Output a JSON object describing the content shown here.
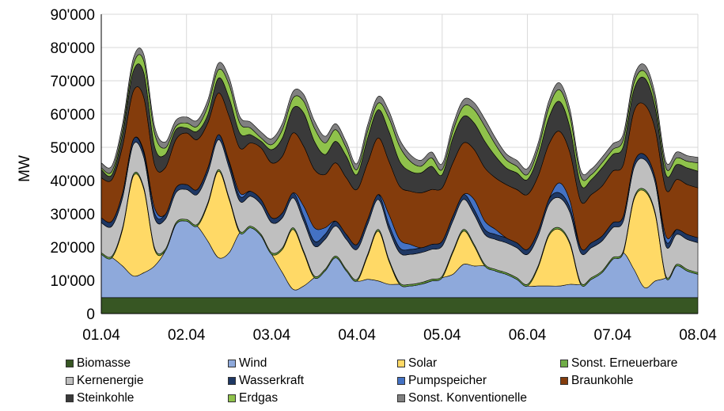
{
  "chart_data": {
    "type": "area",
    "stacked": true,
    "title": "",
    "xlabel": "",
    "ylabel": "MW",
    "ylim": [
      0,
      90000
    ],
    "yticks": [
      "0",
      "10'000",
      "20'000",
      "30'000",
      "40'000",
      "50'000",
      "60'000",
      "70'000",
      "80'000",
      "90'000"
    ],
    "xlim": [
      0,
      7
    ],
    "xticks": [
      "01.04",
      "02.04",
      "03.04",
      "04.04",
      "05.04",
      "06.04",
      "07.04",
      "08.04"
    ],
    "x": [
      0,
      0.125,
      0.25,
      0.375,
      0.5,
      0.625,
      0.75,
      0.875,
      1,
      1.125,
      1.25,
      1.375,
      1.5,
      1.625,
      1.75,
      1.875,
      2,
      2.125,
      2.25,
      2.375,
      2.5,
      2.625,
      2.75,
      2.875,
      3,
      3.125,
      3.25,
      3.375,
      3.5,
      3.625,
      3.75,
      3.875,
      4,
      4.125,
      4.25,
      4.375,
      4.5,
      4.625,
      4.75,
      4.875,
      5,
      5.125,
      5.25,
      5.375,
      5.5,
      5.625,
      5.75,
      5.875,
      6,
      6.125,
      6.25,
      6.375,
      6.5,
      6.625,
      6.75,
      6.875,
      7
    ],
    "grid": true,
    "legend_position": "bottom",
    "series": [
      {
        "name": "Biomasse",
        "color": "#375623",
        "values": [
          4800,
          4800,
          4800,
          4800,
          4800,
          4800,
          4800,
          4800,
          4800,
          4800,
          4800,
          4800,
          4800,
          4800,
          4800,
          4800,
          4800,
          4800,
          4800,
          4800,
          4800,
          4800,
          4800,
          4800,
          4800,
          4800,
          4800,
          4800,
          4800,
          4800,
          4800,
          4800,
          4800,
          4800,
          4800,
          4800,
          4800,
          4800,
          4800,
          4800,
          4800,
          4800,
          4800,
          4800,
          4800,
          4800,
          4800,
          4800,
          4800,
          4800,
          4800,
          4800,
          4800,
          4800,
          4800,
          4800,
          4800
        ]
      },
      {
        "name": "Wind",
        "color": "#8EA9DB",
        "values": [
          13000,
          12000,
          9500,
          6500,
          7500,
          9500,
          14000,
          22000,
          23000,
          21500,
          17000,
          12000,
          13500,
          19500,
          21000,
          18500,
          13000,
          7500,
          2500,
          3500,
          6000,
          8000,
          12000,
          8000,
          5000,
          5500,
          5000,
          4000,
          4000,
          3500,
          4000,
          5000,
          6000,
          7000,
          10000,
          9500,
          9500,
          8000,
          7000,
          5500,
          3500,
          3500,
          3500,
          3500,
          4000,
          4000,
          5500,
          7500,
          11500,
          13500,
          8500,
          3000,
          5000,
          6000,
          9500,
          8000,
          7000
        ]
      },
      {
        "name": "Solar",
        "color": "#FFD966",
        "values": [
          0,
          0,
          11000,
          30000,
          25000,
          5000,
          0,
          0,
          0,
          0,
          11000,
          26000,
          16000,
          0,
          0,
          0,
          0,
          7000,
          18000,
          10000,
          0,
          0,
          0,
          0,
          0,
          7000,
          15000,
          7000,
          0,
          0,
          0,
          0,
          0,
          6500,
          10000,
          6000,
          0,
          0,
          0,
          0,
          0,
          5500,
          15000,
          17000,
          12000,
          0,
          0,
          0,
          0,
          0,
          21000,
          29000,
          20000,
          0,
          0,
          0,
          0
        ]
      },
      {
        "name": "Sonst. Erneuerbare",
        "color": "#70AD47",
        "values": [
          500,
          500,
          500,
          500,
          500,
          500,
          500,
          500,
          500,
          500,
          500,
          500,
          500,
          500,
          500,
          500,
          500,
          500,
          500,
          500,
          500,
          500,
          500,
          500,
          500,
          500,
          500,
          500,
          500,
          500,
          500,
          500,
          500,
          500,
          500,
          500,
          500,
          500,
          500,
          500,
          500,
          500,
          500,
          500,
          500,
          500,
          500,
          500,
          500,
          500,
          500,
          500,
          500,
          500,
          500,
          500,
          500
        ]
      },
      {
        "name": "Kernenergie",
        "color": "#BFBFBF",
        "values": [
          9000,
          9000,
          9000,
          9000,
          9000,
          9000,
          9000,
          9000,
          9000,
          9000,
          9000,
          9000,
          9000,
          9000,
          9000,
          9000,
          9000,
          9000,
          9000,
          9000,
          9000,
          9000,
          9000,
          9000,
          9000,
          9000,
          9000,
          9000,
          9000,
          9000,
          9000,
          9000,
          9000,
          9000,
          9000,
          9000,
          9000,
          9000,
          9000,
          9000,
          9000,
          9000,
          9000,
          9000,
          9000,
          9000,
          9000,
          9000,
          9000,
          9000,
          9000,
          9000,
          9000,
          9000,
          9000,
          9000,
          9000
        ]
      },
      {
        "name": "Wasserkraft",
        "color": "#1F3864",
        "values": [
          1500,
          1500,
          1500,
          1500,
          1500,
          1500,
          1500,
          1500,
          1500,
          1500,
          1500,
          1500,
          1500,
          1500,
          1500,
          1500,
          1500,
          1500,
          1500,
          1500,
          1500,
          1500,
          1500,
          1500,
          1500,
          1500,
          1500,
          1500,
          1500,
          1500,
          1500,
          1500,
          1500,
          1500,
          1500,
          1500,
          1500,
          1500,
          1500,
          1500,
          1500,
          1500,
          1500,
          1500,
          1500,
          1500,
          1500,
          1500,
          1500,
          1500,
          1500,
          1500,
          1500,
          1500,
          1500,
          1500,
          1500
        ]
      },
      {
        "name": "Pumpspeicher",
        "color": "#4472C4",
        "values": [
          0,
          0,
          0,
          0,
          500,
          1500,
          0,
          0,
          0,
          0,
          0,
          0,
          500,
          1000,
          0,
          0,
          0,
          0,
          0,
          3000,
          4000,
          2000,
          0,
          0,
          0,
          0,
          0,
          3000,
          2500,
          1500,
          0,
          0,
          0,
          0,
          0,
          3000,
          2500,
          1500,
          0,
          0,
          0,
          0,
          0,
          3000,
          2000,
          0,
          0,
          0,
          0,
          0,
          0,
          0,
          0,
          1500,
          0,
          0,
          0
        ]
      },
      {
        "name": "Braunkohle",
        "color": "#843C0C",
        "values": [
          12000,
          12500,
          14000,
          14500,
          16000,
          13000,
          14000,
          14500,
          15500,
          15000,
          13500,
          12500,
          13500,
          13500,
          14500,
          15500,
          16500,
          17000,
          18000,
          18000,
          17500,
          16000,
          17500,
          17000,
          16500,
          17000,
          17000,
          16000,
          16000,
          16000,
          16500,
          16500,
          16000,
          16000,
          15500,
          15000,
          16000,
          15500,
          16000,
          16000,
          16500,
          16500,
          16500,
          15500,
          14500,
          14000,
          14500,
          15000,
          15500,
          15500,
          15500,
          15000,
          14500,
          14000,
          15000,
          15000,
          15000
        ]
      },
      {
        "name": "Steinkohle",
        "color": "#3A3A3A",
        "values": [
          2500,
          1500,
          3500,
          6000,
          7500,
          5500,
          4000,
          3000,
          1500,
          2500,
          2500,
          4500,
          5500,
          4500,
          2500,
          2000,
          4000,
          5500,
          7500,
          10000,
          8500,
          6000,
          6500,
          6500,
          4500,
          7500,
          8500,
          9000,
          7500,
          6000,
          6000,
          7000,
          4000,
          7500,
          8000,
          8000,
          8000,
          6500,
          5000,
          5000,
          4500,
          6000,
          8000,
          9000,
          7500,
          5000,
          4500,
          5500,
          5000,
          5500,
          6500,
          8000,
          6500,
          4500,
          4500,
          5000,
          5000
        ]
      },
      {
        "name": "Erdgas",
        "color": "#8FC24B",
        "values": [
          500,
          1000,
          1500,
          2000,
          3500,
          4000,
          2000,
          1000,
          1500,
          1500,
          2500,
          2500,
          4000,
          3000,
          2000,
          1000,
          1500,
          2500,
          3000,
          3500,
          4000,
          3500,
          3500,
          2500,
          1500,
          2000,
          2000,
          4000,
          4500,
          3000,
          2000,
          2500,
          1500,
          2000,
          3000,
          4000,
          4500,
          3500,
          2500,
          2000,
          1500,
          2000,
          3000,
          3500,
          3500,
          2500,
          1500,
          1500,
          1500,
          2000,
          2000,
          2000,
          2000,
          2000,
          2000,
          2000,
          2500
        ]
      },
      {
        "name": "Sonst. Konventionelle",
        "color": "#808080",
        "values": [
          1500,
          1700,
          1800,
          1900,
          2000,
          2100,
          1800,
          1800,
          1800,
          1800,
          1900,
          2000,
          2100,
          2000,
          1800,
          1800,
          1800,
          1900,
          2000,
          2100,
          2200,
          2000,
          1800,
          1800,
          1800,
          1900,
          2000,
          2100,
          2100,
          2000,
          1800,
          1800,
          1800,
          1900,
          2000,
          2100,
          2200,
          2000,
          1800,
          1800,
          1800,
          1900,
          2000,
          2100,
          2000,
          1800,
          1700,
          1700,
          1700,
          1800,
          1900,
          2000,
          2000,
          1900,
          1800,
          1700,
          1700
        ]
      }
    ]
  }
}
